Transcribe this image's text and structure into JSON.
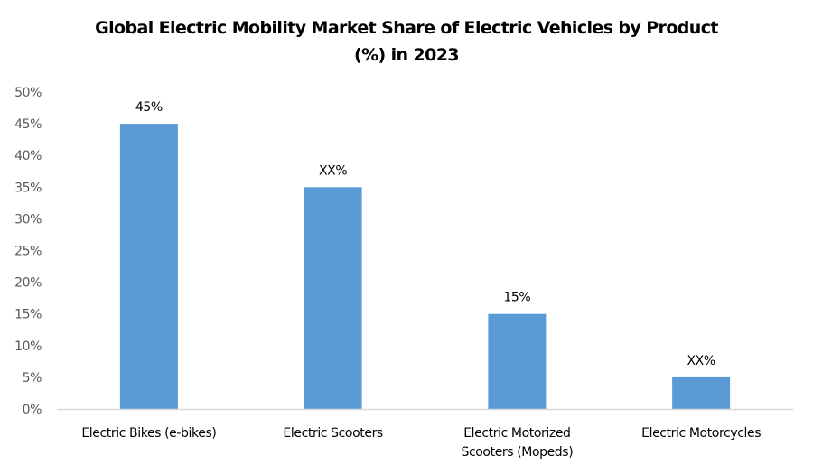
{
  "chart_data": {
    "type": "bar",
    "title_lines": [
      "Global Electric Mobility Market Share of Electric Vehicles by Product",
      "(%) in 2023"
    ],
    "title": "Global Electric Mobility Market Share of Electric Vehicles by Product (%) in 2023",
    "xlabel": "",
    "ylabel": "",
    "categories": [
      [
        "Electric Bikes (e-bikes)"
      ],
      [
        "Electric Scooters"
      ],
      [
        "Electric Motorized",
        "Scooters (Mopeds)"
      ],
      [
        "Electric Motorcycles"
      ]
    ],
    "values": [
      45,
      35,
      15,
      5
    ],
    "data_labels": [
      "45%",
      "XX%",
      "15%",
      "XX%"
    ],
    "ylim": [
      0,
      50
    ],
    "yticks": [
      0,
      5,
      10,
      15,
      20,
      25,
      30,
      35,
      40,
      45,
      50
    ],
    "ytick_labels": [
      "0%",
      "5%",
      "10%",
      "15%",
      "20%",
      "25%",
      "30%",
      "35%",
      "40%",
      "45%",
      "50%"
    ],
    "grid": false,
    "legend": "none",
    "bar_color": "#5B9BD5",
    "axis_color": "#D9D9D9"
  }
}
